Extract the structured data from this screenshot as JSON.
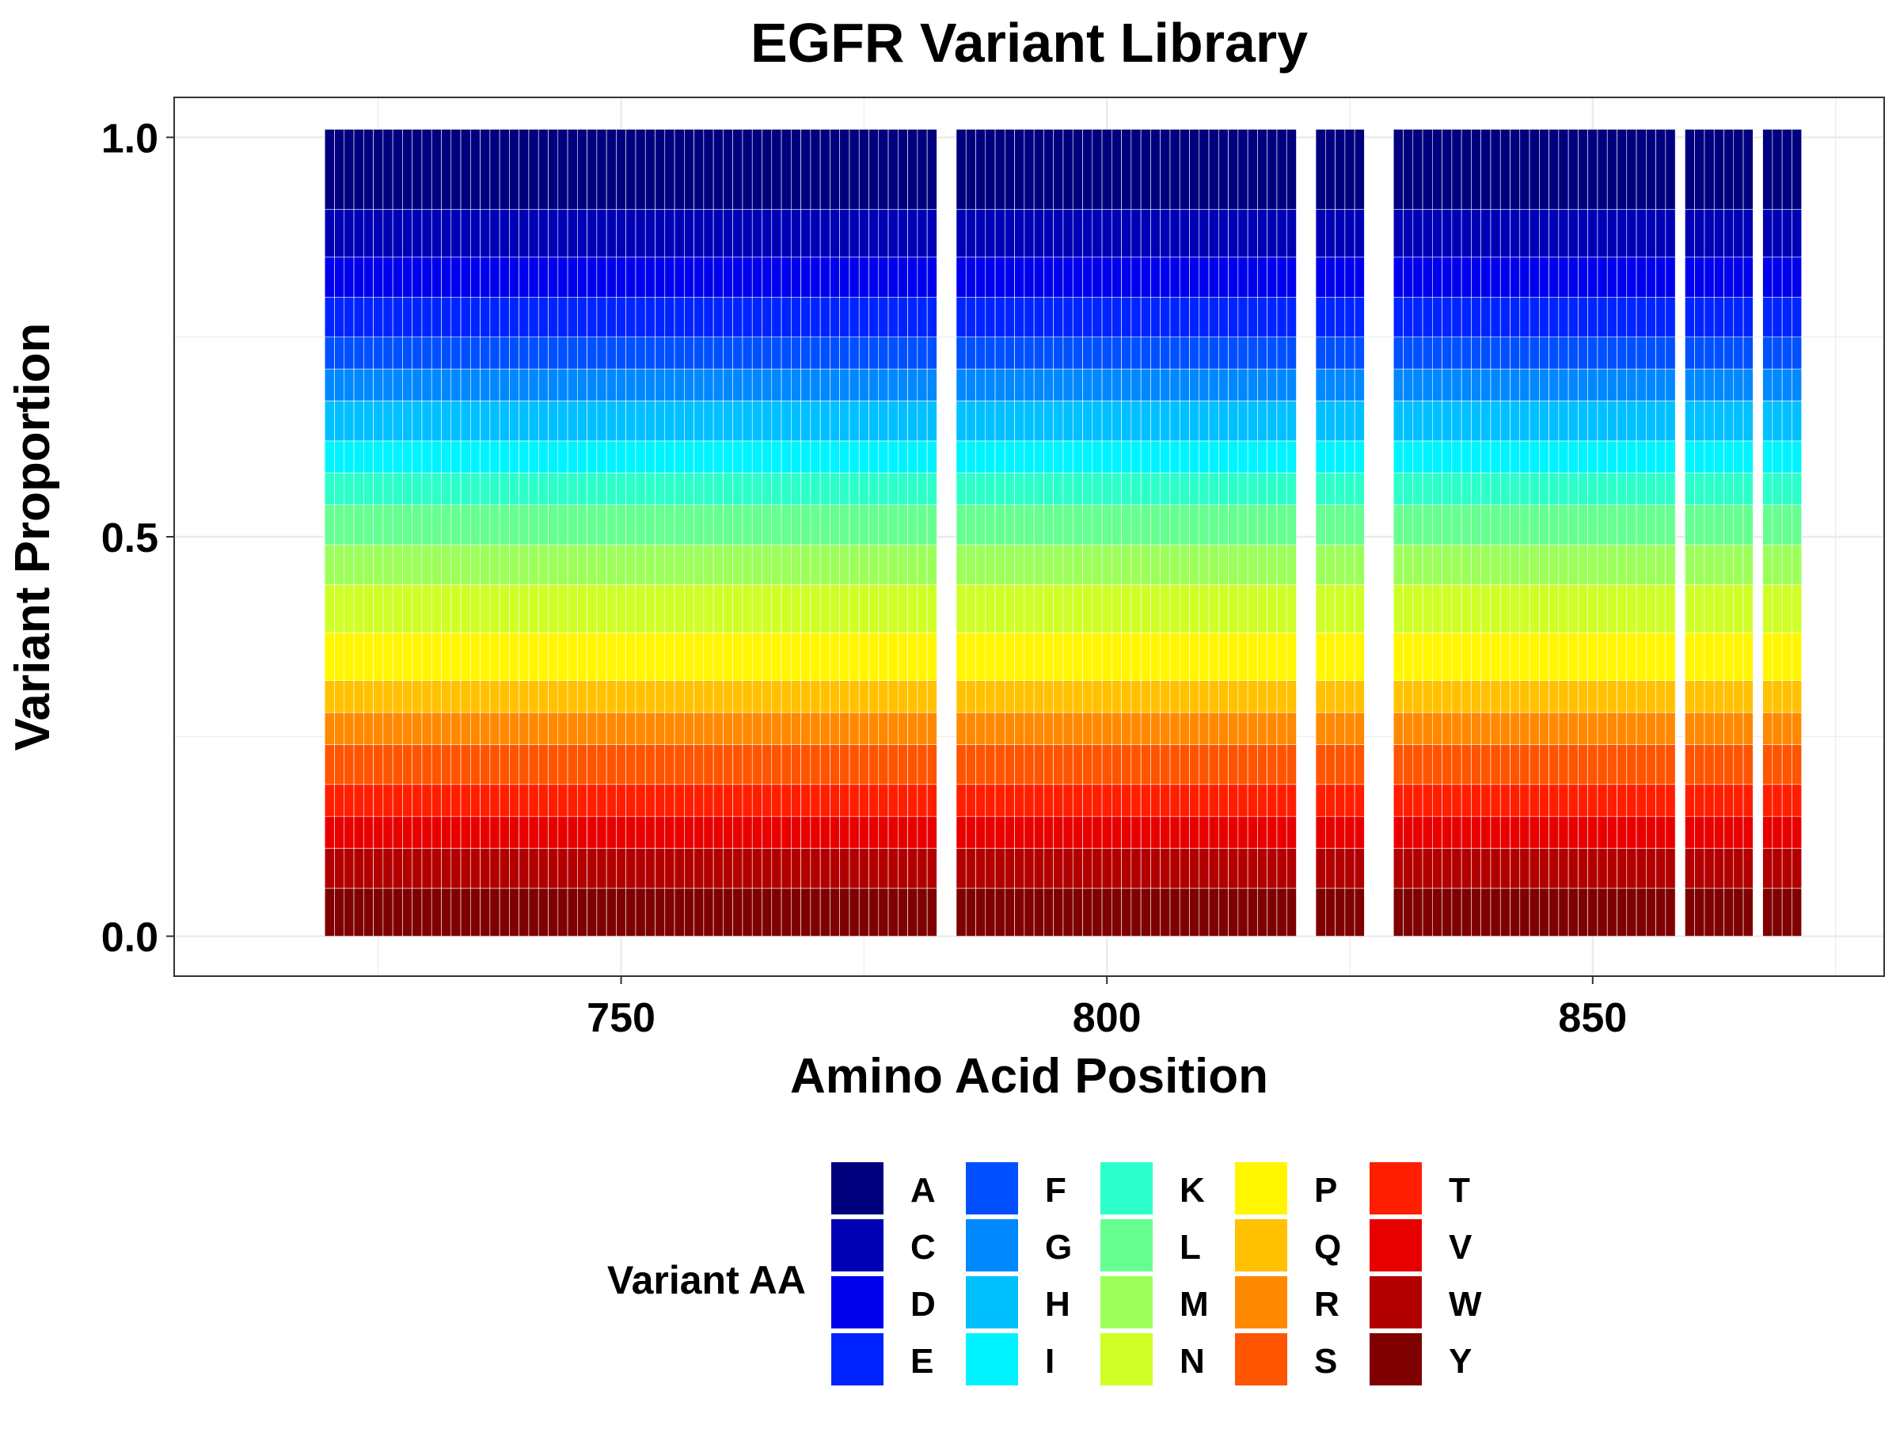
{
  "chart_data": {
    "type": "bar",
    "stacked": true,
    "title": "EGFR Variant Library",
    "xlabel": "Amino Acid Position",
    "ylabel": "Variant Proportion",
    "xlim": [
      704,
      880
    ],
    "ylim": [
      -0.05,
      1.05
    ],
    "x_ticks": [
      750,
      800,
      850
    ],
    "y_ticks": [
      0.0,
      0.5,
      1.0
    ],
    "y_tick_labels": [
      "0.0",
      "0.5",
      "1.0"
    ],
    "grid": true,
    "legend_title": "Variant AA",
    "legend_position": "bottom",
    "legend_order": [
      "A",
      "C",
      "D",
      "E",
      "F",
      "G",
      "H",
      "I",
      "K",
      "L",
      "M",
      "N",
      "P",
      "Q",
      "R",
      "S",
      "T",
      "V",
      "W",
      "Y"
    ],
    "colors": {
      "A": "#00007f",
      "C": "#0000b5",
      "D": "#0000ec",
      "E": "#0024ff",
      "F": "#0050ff",
      "G": "#0088ff",
      "H": "#00c0ff",
      "I": "#00f4ff",
      "K": "#2dffca",
      "L": "#66ff91",
      "M": "#9cff5a",
      "N": "#cfff27",
      "P": "#fff600",
      "Q": "#ffc100",
      "R": "#ff8900",
      "S": "#ff5400",
      "T": "#ff1e00",
      "V": "#e80000",
      "W": "#b20000",
      "Y": "#7f0000"
    },
    "positions_present": {
      "ranges": [
        [
          720,
          782
        ],
        [
          785,
          819
        ],
        [
          822,
          826
        ],
        [
          830,
          858
        ],
        [
          860,
          866
        ],
        [
          868,
          871
        ]
      ]
    },
    "default_proportions": {
      "A": 0.1,
      "C": 0.06,
      "D": 0.05,
      "E": 0.05,
      "F": 0.04,
      "G": 0.04,
      "H": 0.05,
      "I": 0.04,
      "K": 0.04,
      "L": 0.05,
      "M": 0.05,
      "N": 0.06,
      "P": 0.06,
      "Q": 0.04,
      "R": 0.04,
      "S": 0.05,
      "T": 0.04,
      "V": 0.04,
      "W": 0.05,
      "Y": 0.06
    }
  }
}
